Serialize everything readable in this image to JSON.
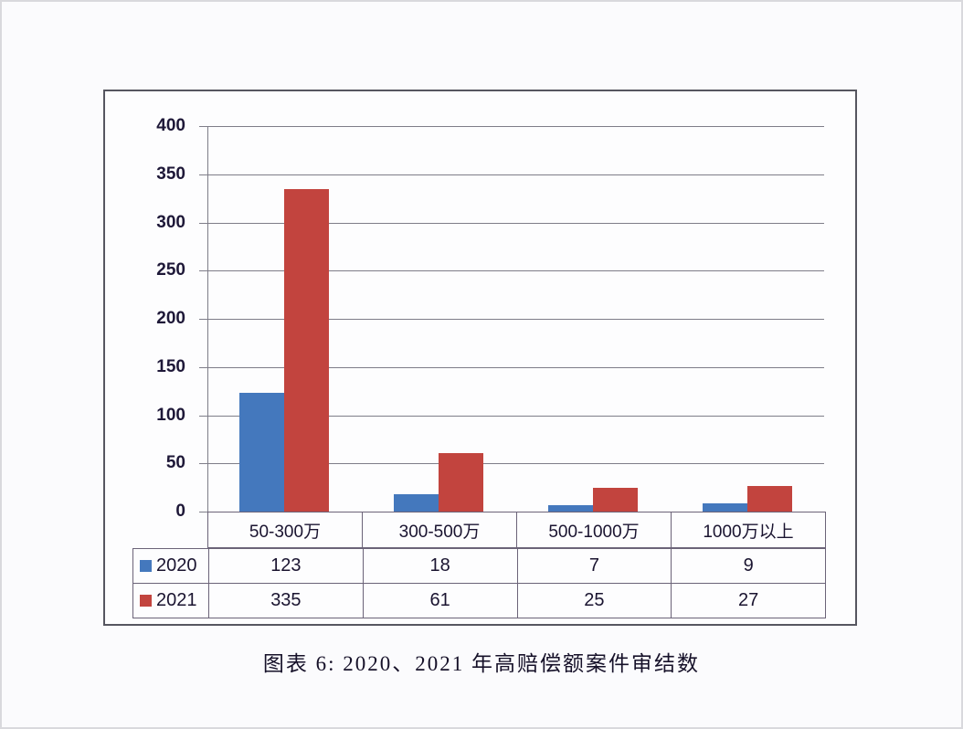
{
  "page": {
    "caption": "图表 6: 2020、2021 年高赔偿额案件审结数"
  },
  "chart_data": {
    "type": "bar",
    "title": "",
    "xlabel": "",
    "ylabel": "",
    "categories": [
      "50-300万",
      "300-500万",
      "500-1000万",
      "1000万以上"
    ],
    "series": [
      {
        "name": "2020",
        "color": "#4478BD",
        "values": [
          123,
          18,
          7,
          9
        ]
      },
      {
        "name": "2021",
        "color": "#C2443E",
        "values": [
          335,
          61,
          25,
          27
        ]
      }
    ],
    "ylim": [
      0,
      400
    ],
    "ytick_step": 50,
    "grid": "horizontal",
    "legend_position": "data-table-left",
    "data_table_shown": true
  }
}
